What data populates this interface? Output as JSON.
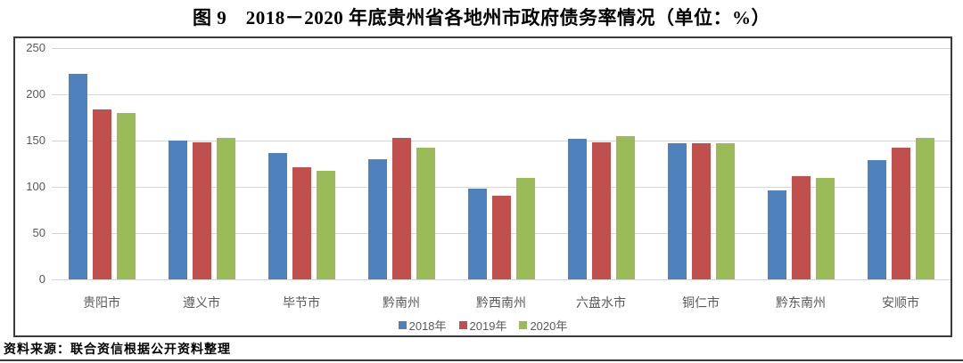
{
  "title": "图 9　2018－2020 年底贵州省各地州市政府债务率情况（单位：%）",
  "source": "资料来源：联合资信根据公开资料整理",
  "colors": {
    "series_2018": "#4F81BD",
    "series_2019": "#C0504D",
    "series_2020": "#9BBB59",
    "gridline": "#D6D6D6",
    "axis_text": "#595959",
    "frame_border": "#3A3A3A"
  },
  "chart_data": {
    "type": "bar",
    "title": "图 9　2018－2020 年底贵州省各地州市政府债务率情况（单位：%）",
    "unit": "%",
    "categories": [
      "贵阳市",
      "遵义市",
      "毕节市",
      "黔南州",
      "黔西南州",
      "六盘水市",
      "铜仁市",
      "黔东南州",
      "安顺市"
    ],
    "series": [
      {
        "name": "2018年",
        "color": "#4F81BD",
        "values": [
          222,
          150,
          137,
          130,
          98,
          152,
          147,
          96,
          129
        ]
      },
      {
        "name": "2019年",
        "color": "#C0504D",
        "values": [
          184,
          148,
          121,
          153,
          90,
          148,
          147,
          112,
          142
        ]
      },
      {
        "name": "2020年",
        "color": "#9BBB59",
        "values": [
          180,
          153,
          117,
          142,
          110,
          155,
          147,
          110,
          153
        ]
      }
    ],
    "xlabel": "",
    "ylabel": "",
    "ylim": [
      0,
      250
    ],
    "yticks": [
      0,
      50,
      100,
      150,
      200,
      250
    ],
    "grid": "horizontal",
    "legend_position": "bottom"
  }
}
